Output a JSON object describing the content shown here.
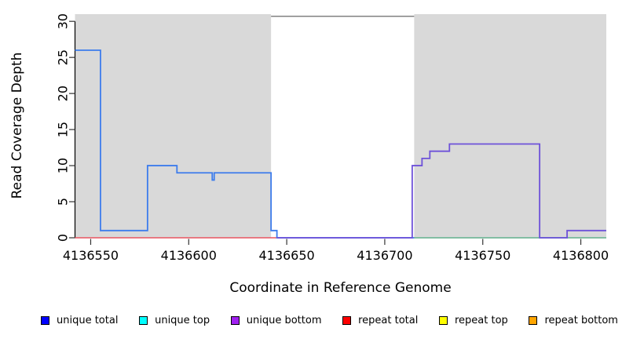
{
  "figure": {
    "xlabel": "Coordinate in Reference Genome",
    "ylabel": "Read Coverage Depth"
  },
  "chart_data": {
    "type": "line",
    "title": "",
    "xlabel": "Coordinate in Reference Genome",
    "ylabel": "Read Coverage Depth",
    "xlim": [
      4136542,
      4136813
    ],
    "ylim": [
      0,
      31
    ],
    "x_ticks": [
      4136550,
      4136600,
      4136650,
      4136700,
      4136750,
      4136800
    ],
    "y_ticks": [
      0,
      5,
      10,
      15,
      20,
      25,
      30
    ],
    "grid": false,
    "legend_position": "bottom",
    "colors": {
      "axis": "#000000",
      "tick": "#333333",
      "region_fill": "#d9d9d9",
      "gap_cap": "#828282"
    },
    "background_regions": [
      {
        "x0": 4136542,
        "x1": 4136642,
        "color": "#d9d9d9"
      },
      {
        "x0": 4136715,
        "x1": 4136813,
        "color": "#d9d9d9"
      }
    ],
    "gap_cap_line": {
      "x0": 4136642,
      "x1": 4136715,
      "y": 30.7,
      "color": "#828282"
    },
    "series": [
      {
        "name": "repeat total",
        "color": "#e85560",
        "width": 1.4,
        "points": [
          [
            4136542,
            0
          ],
          [
            4136645,
            0
          ]
        ]
      },
      {
        "name": "unique total",
        "color": "#3d7cec",
        "width": 1.8,
        "points": [
          [
            4136542,
            26
          ],
          [
            4136555,
            26
          ],
          [
            4136555,
            1
          ],
          [
            4136579,
            1
          ],
          [
            4136579,
            10
          ],
          [
            4136594,
            10
          ],
          [
            4136594,
            9
          ],
          [
            4136612,
            9
          ],
          [
            4136612,
            8
          ],
          [
            4136613,
            8
          ],
          [
            4136613,
            9
          ],
          [
            4136642,
            9
          ],
          [
            4136642,
            1
          ],
          [
            4136645,
            1
          ],
          [
            4136645,
            0
          ],
          [
            4136813,
            0
          ]
        ]
      },
      {
        "name": "green baseline",
        "color": "#8bc98b",
        "width": 1.4,
        "points": [
          [
            4136715,
            0
          ],
          [
            4136813,
            0
          ]
        ]
      },
      {
        "name": "unique bottom",
        "color": "#6e52d9",
        "width": 1.8,
        "points": [
          [
            4136645,
            0
          ],
          [
            4136714,
            0
          ],
          [
            4136714,
            10
          ],
          [
            4136719,
            10
          ],
          [
            4136719,
            11
          ],
          [
            4136723,
            11
          ],
          [
            4136723,
            12
          ],
          [
            4136733,
            12
          ],
          [
            4136733,
            13
          ],
          [
            4136779,
            13
          ],
          [
            4136779,
            0
          ],
          [
            4136793,
            0
          ],
          [
            4136793,
            1
          ],
          [
            4136813,
            1
          ]
        ]
      }
    ],
    "legend": [
      {
        "label": "unique total",
        "color": "#0000ff"
      },
      {
        "label": "unique top",
        "color": "#00ffff"
      },
      {
        "label": "unique bottom",
        "color": "#a020f0"
      },
      {
        "label": "repeat total",
        "color": "#ff0000"
      },
      {
        "label": "repeat top",
        "color": "#ffff00"
      },
      {
        "label": "repeat bottom",
        "color": "#ffa500"
      }
    ]
  }
}
